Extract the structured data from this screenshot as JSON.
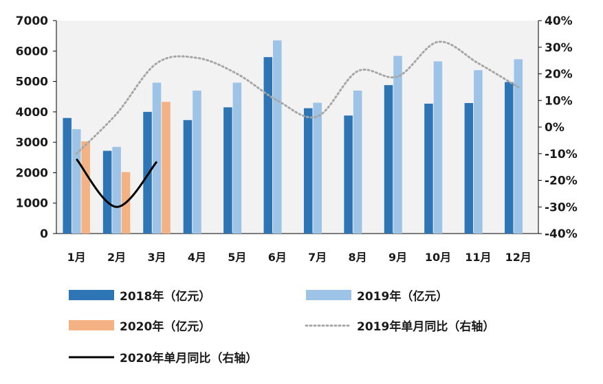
{
  "chart_data": {
    "type": "bar",
    "categories": [
      "1月",
      "2月",
      "3月",
      "4月",
      "5月",
      "6月",
      "7月",
      "8月",
      "9月",
      "10月",
      "11月",
      "12月"
    ],
    "series": [
      {
        "name": "2018年（亿元）",
        "type": "bar",
        "axis": "left",
        "color": "#2e75b6",
        "values": [
          3800,
          2720,
          4000,
          3730,
          4150,
          5800,
          4120,
          3880,
          4880,
          4270,
          4290,
          4980
        ]
      },
      {
        "name": "2019年（亿元）",
        "type": "bar",
        "axis": "left",
        "color": "#9dc3e6",
        "values": [
          3430,
          2850,
          4960,
          4700,
          4960,
          6350,
          4300,
          4700,
          5840,
          5660,
          5370,
          5730
        ]
      },
      {
        "name": "2020年（亿元）",
        "type": "bar",
        "axis": "left",
        "color": "#f4b183",
        "values": [
          3030,
          2020,
          4330,
          null,
          null,
          null,
          null,
          null,
          null,
          null,
          null,
          null
        ]
      },
      {
        "name": "2019年单月同比（右轴）",
        "type": "line",
        "axis": "right",
        "style": "dotted",
        "color": "#a6a6a6",
        "values": [
          -10,
          5,
          24,
          26,
          20,
          10,
          4,
          21,
          19,
          32,
          24,
          15
        ]
      },
      {
        "name": "2020年单月同比（右轴）",
        "type": "line",
        "axis": "right",
        "style": "solid",
        "color": "#000000",
        "values": [
          -12,
          -30,
          -13,
          null,
          null,
          null,
          null,
          null,
          null,
          null,
          null,
          null
        ]
      }
    ],
    "y_left": {
      "ylim": [
        0,
        7000
      ],
      "ticks": [
        "0",
        "1000",
        "2000",
        "3000",
        "4000",
        "5000",
        "6000",
        "7000"
      ]
    },
    "y_right": {
      "ylim": [
        -40,
        40
      ],
      "ticks": [
        "-40%",
        "-30%",
        "-20%",
        "-10%",
        "0%",
        "10%",
        "20%",
        "30%",
        "40%"
      ]
    },
    "grid": false,
    "plot_background": "#f2f2f2",
    "legend_position": "bottom"
  }
}
